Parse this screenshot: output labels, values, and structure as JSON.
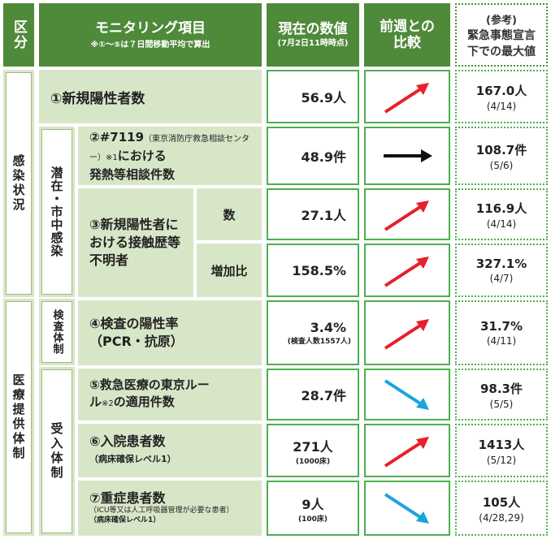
{
  "header": {
    "kubun": "区分",
    "item_title": "モニタリング項目",
    "item_note": "※①～⑤は７日間移動平均で算出",
    "current_title": "現在の数値",
    "current_note": "(7月2日11時時点)",
    "compare_title": "前週との比較",
    "ref_line1": "(参考)",
    "ref_line2": "緊急事態宣言",
    "ref_line3": "下での最大値"
  },
  "categories": {
    "infection": "感染状況",
    "latent": "潜在・市中感染",
    "medical": "医療提供体制",
    "testing": "検査体制",
    "acceptance": "受入体制"
  },
  "rows": [
    {
      "label": "①新規陽性者数",
      "value": "56.9人",
      "trend": "up",
      "ref_value": "167.0人",
      "ref_date": "(4/14)"
    },
    {
      "label_main": "②#7119",
      "label_sub": "（東京消防庁救急相談センター）",
      "label_note": "※1",
      "label_rest": "における",
      "label_line3": "発熱等相談件数",
      "value": "48.9件",
      "trend": "flat",
      "ref_value": "108.7件",
      "ref_date": "(5/6)"
    },
    {
      "label": "③新規陽性者における接触歴等不明者",
      "sub_count": "数",
      "value": "27.1人",
      "trend": "up",
      "ref_value": "116.9人",
      "ref_date": "(4/14)"
    },
    {
      "sub_ratio": "増加比",
      "value": "158.5%",
      "trend": "up",
      "ref_value": "327.1%",
      "ref_date": "(4/7)"
    },
    {
      "label": "④検査の陽性率",
      "label_line2": "（PCR・抗原）",
      "value": "3.4%",
      "value_note": "(検査人数1557人)",
      "trend": "up",
      "ref_value": "31.7%",
      "ref_date": "(4/11)"
    },
    {
      "label": "⑤救急医療の東京ルー",
      "label_line2a": "ル",
      "label_note": "※2",
      "label_line2b": "の適用件数",
      "value": "28.7件",
      "trend": "down",
      "ref_value": "98.3件",
      "ref_date": "(5/5)"
    },
    {
      "label": "⑥入院患者数",
      "label_sub": "（病床確保レベル1）",
      "value": "271人",
      "value_note": "(1000床)",
      "trend": "up",
      "ref_value": "1413人",
      "ref_date": "(5/12)"
    },
    {
      "label": "⑦重症患者数",
      "label_sub": "（ICU等又は人工呼吸器管理が必要な患者）",
      "label_sub2": "（病床確保レベル1）",
      "value": "9人",
      "value_note": "(100床)",
      "trend": "down",
      "ref_value": "105人",
      "ref_date": "(4/28,29)"
    }
  ],
  "colors": {
    "header_green": "#4f8a3a",
    "light_green": "#d8e6c8",
    "border_green": "#4caf50",
    "arrow_up": "#e8202a",
    "arrow_down": "#1aa3dd",
    "arrow_flat": "#111111"
  }
}
